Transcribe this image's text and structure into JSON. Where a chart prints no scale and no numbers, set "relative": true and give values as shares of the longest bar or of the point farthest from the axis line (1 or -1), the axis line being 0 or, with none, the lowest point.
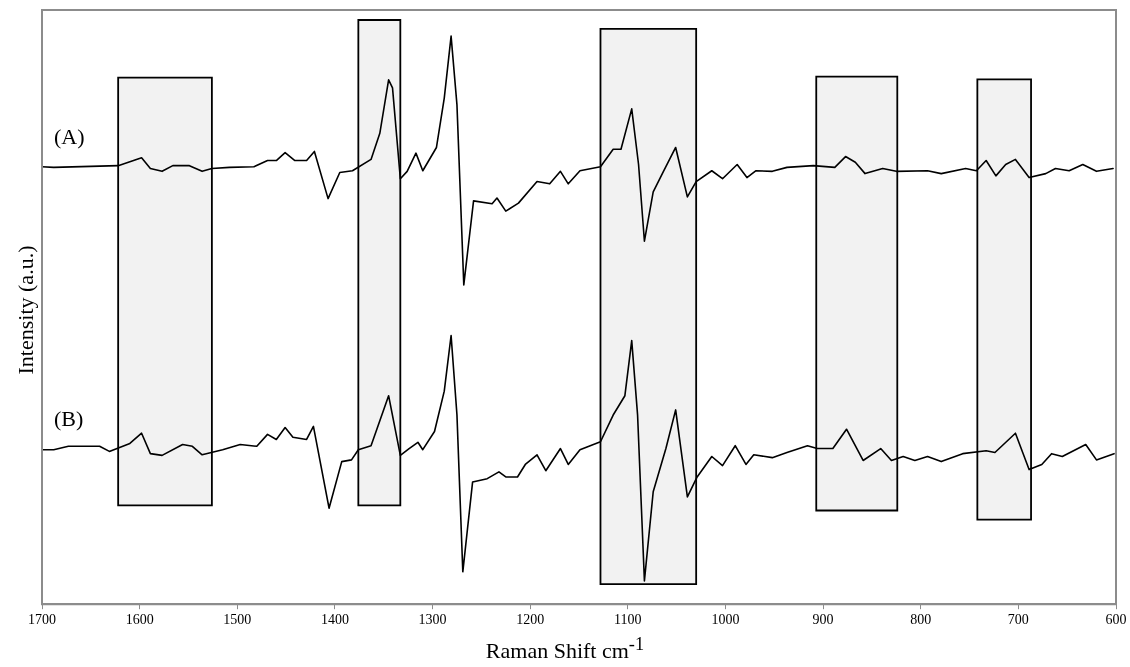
{
  "chart_data": {
    "type": "line",
    "relative": true,
    "xlabel": "Raman Shift cm$^{-1}$",
    "ylabel": "Intensity (a.u.)",
    "xlim": [
      1700,
      600
    ],
    "xticks": [
      1700,
      1600,
      1500,
      1400,
      1300,
      1200,
      1100,
      1000,
      900,
      800,
      700,
      600
    ],
    "grid": false,
    "legend": false,
    "marker": "none",
    "line_style": "solid",
    "bands": [
      {
        "axis": "x",
        "from": 1622,
        "to": 1526,
        "color": "#000000"
      },
      {
        "axis": "x",
        "from": 1376,
        "to": 1333,
        "color": "#000000"
      },
      {
        "axis": "x",
        "from": 1128,
        "to": 1030,
        "color": "#000000"
      },
      {
        "axis": "x",
        "from": 907,
        "to": 824,
        "color": "#000000"
      },
      {
        "axis": "x",
        "from": 742,
        "to": 687,
        "color": "#000000"
      }
    ],
    "series": [
      {
        "name": "(A)",
        "color": "#000000",
        "x": [
          1700,
          1688,
          1622,
          1598,
          1589,
          1577,
          1566,
          1549,
          1536,
          1526,
          1508,
          1483,
          1469,
          1460,
          1451,
          1441,
          1429,
          1421,
          1407,
          1395,
          1382,
          1363,
          1354,
          1345,
          1341,
          1333,
          1326,
          1317,
          1310,
          1296,
          1288,
          1281,
          1275,
          1268,
          1258,
          1239,
          1234,
          1225,
          1212,
          1193,
          1180,
          1169,
          1161,
          1149,
          1128,
          1115,
          1107,
          1096,
          1089,
          1083,
          1074,
          1064,
          1051,
          1039,
          1030,
          1014,
          1003,
          988,
          978,
          969,
          952,
          937,
          910,
          888,
          877,
          867,
          857,
          839,
          825,
          793,
          779,
          754,
          743,
          733,
          723,
          713,
          703,
          689,
          672,
          662,
          648,
          634,
          620,
          603
        ],
        "values": [
          0.77,
          0.769,
          0.772,
          0.786,
          0.767,
          0.762,
          0.772,
          0.772,
          0.762,
          0.767,
          0.769,
          0.77,
          0.781,
          0.781,
          0.795,
          0.781,
          0.781,
          0.797,
          0.714,
          0.76,
          0.763,
          0.783,
          0.829,
          0.923,
          0.909,
          0.749,
          0.762,
          0.794,
          0.763,
          0.804,
          0.891,
          1.0,
          0.879,
          0.562,
          0.71,
          0.705,
          0.715,
          0.692,
          0.706,
          0.744,
          0.74,
          0.762,
          0.74,
          0.763,
          0.77,
          0.801,
          0.801,
          0.872,
          0.774,
          0.639,
          0.726,
          0.76,
          0.804,
          0.717,
          0.744,
          0.763,
          0.749,
          0.774,
          0.751,
          0.763,
          0.762,
          0.769,
          0.772,
          0.769,
          0.788,
          0.778,
          0.758,
          0.767,
          0.762,
          0.763,
          0.758,
          0.767,
          0.763,
          0.781,
          0.754,
          0.774,
          0.783,
          0.751,
          0.758,
          0.767,
          0.763,
          0.774,
          0.762,
          0.767
        ]
      },
      {
        "name": "(B)",
        "color": "#000000",
        "x": [
          1700,
          1688,
          1673,
          1641,
          1631,
          1610,
          1598,
          1589,
          1577,
          1556,
          1546,
          1536,
          1515,
          1497,
          1480,
          1469,
          1460,
          1451,
          1443,
          1429,
          1422,
          1406,
          1393,
          1383,
          1376,
          1363,
          1345,
          1333,
          1324,
          1315,
          1310,
          1298,
          1288,
          1281,
          1275,
          1269,
          1259,
          1244,
          1232,
          1225,
          1213,
          1205,
          1193,
          1184,
          1169,
          1161,
          1149,
          1128,
          1115,
          1103,
          1096,
          1090,
          1083,
          1074,
          1061,
          1051,
          1039,
          1029,
          1014,
          1003,
          990,
          979,
          971,
          952,
          937,
          916,
          906,
          890,
          876,
          859,
          841,
          830,
          818,
          806,
          793,
          779,
          757,
          733,
          724,
          703,
          689,
          676,
          666,
          655,
          631,
          620,
          602
        ],
        "values": [
          0.272,
          0.272,
          0.278,
          0.278,
          0.269,
          0.283,
          0.301,
          0.265,
          0.262,
          0.281,
          0.278,
          0.263,
          0.272,
          0.281,
          0.278,
          0.299,
          0.29,
          0.311,
          0.294,
          0.29,
          0.313,
          0.169,
          0.251,
          0.254,
          0.272,
          0.279,
          0.367,
          0.262,
          0.274,
          0.285,
          0.272,
          0.304,
          0.375,
          0.473,
          0.333,
          0.057,
          0.215,
          0.221,
          0.233,
          0.224,
          0.224,
          0.246,
          0.263,
          0.235,
          0.274,
          0.246,
          0.272,
          0.286,
          0.333,
          0.367,
          0.464,
          0.333,
          0.041,
          0.198,
          0.274,
          0.342,
          0.189,
          0.224,
          0.26,
          0.244,
          0.279,
          0.246,
          0.263,
          0.258,
          0.267,
          0.279,
          0.274,
          0.274,
          0.308,
          0.253,
          0.274,
          0.253,
          0.26,
          0.253,
          0.26,
          0.251,
          0.265,
          0.27,
          0.267,
          0.301,
          0.237,
          0.246,
          0.265,
          0.26,
          0.281,
          0.254,
          0.265
        ]
      }
    ]
  }
}
